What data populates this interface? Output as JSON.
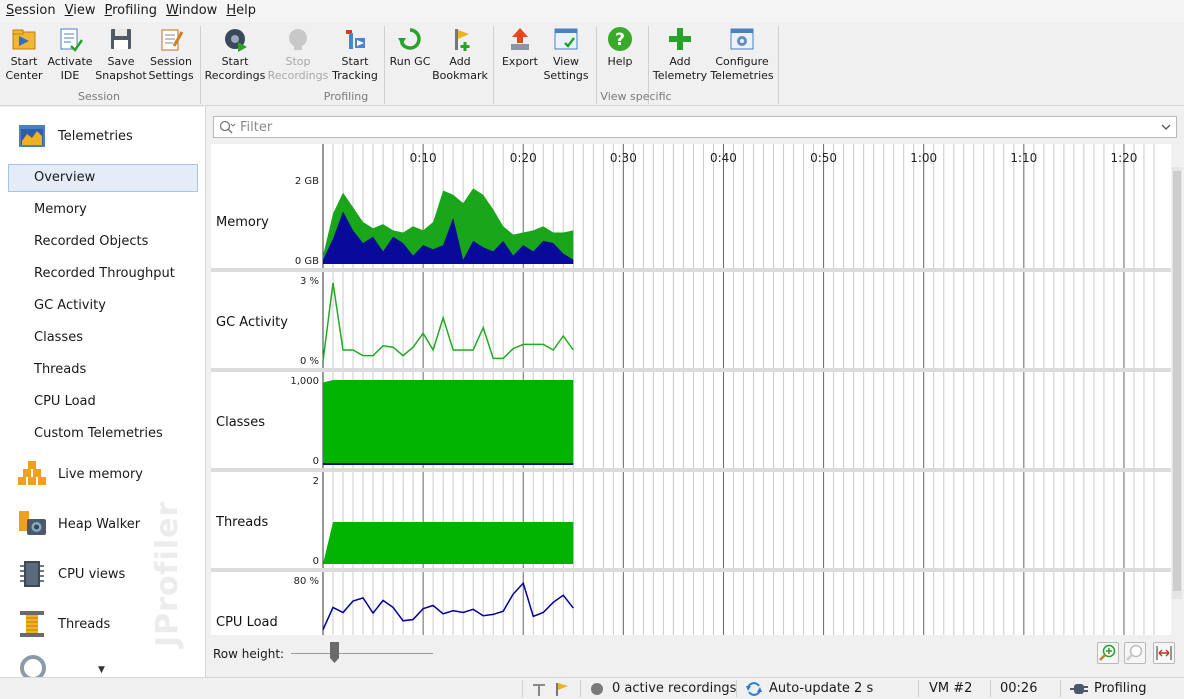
{
  "menu": [
    {
      "key": "S",
      "rest": "ession"
    },
    {
      "key": "V",
      "rest": "iew"
    },
    {
      "key": "P",
      "rest": "rofiling"
    },
    {
      "key": "W",
      "rest": "indow"
    },
    {
      "key": "H",
      "rest": "elp"
    }
  ],
  "toolbar": {
    "buttons": [
      {
        "label": "Start\nCenter",
        "icon": "start-center-icon",
        "enabled": true
      },
      {
        "label": "Activate\nIDE",
        "icon": "activate-ide-icon",
        "enabled": true
      },
      {
        "label": "Save\nSnapshot",
        "icon": "save-snapshot-icon",
        "enabled": true
      },
      {
        "label": "Session\nSettings",
        "icon": "session-settings-icon",
        "enabled": true
      },
      {
        "label": "Start\nRecordings",
        "icon": "start-recordings-icon",
        "enabled": true
      },
      {
        "label": "Stop\nRecordings",
        "icon": "stop-recordings-icon",
        "enabled": false
      },
      {
        "label": "Start\nTracking",
        "icon": "start-tracking-icon",
        "enabled": true
      },
      {
        "label": "Run GC",
        "icon": "run-gc-icon",
        "enabled": true
      },
      {
        "label": "Add\nBookmark",
        "icon": "add-bookmark-icon",
        "enabled": true
      },
      {
        "label": "Export",
        "icon": "export-icon",
        "enabled": true
      },
      {
        "label": "View\nSettings",
        "icon": "view-settings-icon",
        "enabled": true
      },
      {
        "label": "Help",
        "icon": "help-icon",
        "enabled": true
      },
      {
        "label": "Add\nTelemetry",
        "icon": "add-telemetry-icon",
        "enabled": true
      },
      {
        "label": "Configure\nTelemetries",
        "icon": "configure-telemetries-icon",
        "enabled": true
      }
    ],
    "groups": [
      "Session",
      "Profiling",
      "View specific"
    ]
  },
  "sidebar": {
    "sections": [
      {
        "label": "Telemetries",
        "icon": "telemetries-icon"
      },
      {
        "label": "Live memory",
        "icon": "live-memory-icon"
      },
      {
        "label": "Heap Walker",
        "icon": "heap-walker-icon"
      },
      {
        "label": "CPU views",
        "icon": "cpu-views-icon"
      },
      {
        "label": "Threads",
        "icon": "threads-icon"
      }
    ],
    "telemetry_items": [
      "Overview",
      "Memory",
      "Recorded Objects",
      "Recorded Throughput",
      "GC Activity",
      "Classes",
      "Threads",
      "CPU Load",
      "Custom Telemetries"
    ],
    "selected": "Overview",
    "brand": "JProfiler"
  },
  "filter": {
    "placeholder": "Filter"
  },
  "timeline": {
    "ticks": [
      "0:10",
      "0:20",
      "0:30",
      "0:40",
      "0:50",
      "1:00",
      "1:10",
      "1:20"
    ],
    "tick_seconds": [
      10,
      20,
      30,
      40,
      50,
      60,
      70,
      80
    ],
    "x_range_seconds": [
      0,
      84
    ],
    "data_end_seconds": 25
  },
  "colors": {
    "green": "#1aa61a",
    "bright_green": "#00b300",
    "navy": "#0a0a9a",
    "line_green": "#22aa22",
    "line_navy": "#000099"
  },
  "chart_data": [
    {
      "type": "area",
      "title": "Memory",
      "ylabel_top": "2 GB",
      "ylabel_bottom": "0 GB",
      "ylim": [
        0,
        2
      ],
      "x": [
        0,
        1,
        2,
        3,
        4,
        5,
        6,
        7,
        8,
        9,
        10,
        11,
        12,
        13,
        14,
        15,
        16,
        17,
        18,
        19,
        20,
        21,
        22,
        23,
        24,
        25
      ],
      "series": [
        {
          "name": "",
          "values": [
            0.2,
            1.2,
            1.7,
            1.35,
            1.0,
            0.85,
            0.95,
            0.8,
            0.75,
            0.9,
            0.8,
            1.0,
            1.75,
            1.65,
            1.45,
            1.8,
            1.65,
            1.3,
            0.9,
            0.7,
            0.75,
            0.8,
            0.9,
            0.75,
            0.75,
            0.8
          ]
        },
        {
          "name": "",
          "values": [
            0.1,
            0.6,
            1.25,
            0.8,
            0.5,
            0.65,
            0.3,
            0.65,
            0.5,
            0.2,
            0.45,
            0.35,
            0.45,
            1.1,
            0.1,
            0.55,
            0.4,
            0.3,
            0.55,
            0.2,
            0.45,
            0.3,
            0.55,
            0.5,
            0.25,
            0.1
          ]
        }
      ]
    },
    {
      "type": "line",
      "title": "GC Activity",
      "ylabel_top": "3 %",
      "ylabel_bottom": "0 %",
      "ylim": [
        0,
        3
      ],
      "x": [
        0,
        1,
        2,
        3,
        4,
        5,
        6,
        7,
        8,
        9,
        10,
        11,
        12,
        13,
        14,
        15,
        16,
        17,
        18,
        19,
        20,
        21,
        22,
        23,
        24,
        25
      ],
      "series": [
        {
          "name": "",
          "values": [
            0.1,
            2.9,
            0.5,
            0.5,
            0.3,
            0.3,
            0.65,
            0.6,
            0.3,
            0.6,
            1.1,
            0.5,
            1.65,
            0.5,
            0.5,
            0.5,
            1.3,
            0.2,
            0.2,
            0.55,
            0.7,
            0.7,
            0.7,
            0.5,
            1.0,
            0.5
          ]
        }
      ]
    },
    {
      "type": "area",
      "title": "Classes",
      "ylabel_top": "1,000",
      "ylabel_bottom": "0",
      "ylim": [
        0,
        1000
      ],
      "x": [
        0,
        1,
        25
      ],
      "series": [
        {
          "name": "",
          "values": [
            970,
            1000,
            1000
          ]
        }
      ]
    },
    {
      "type": "area",
      "title": "Threads",
      "ylabel_top": "2",
      "ylabel_bottom": "0",
      "ylim": [
        0,
        2
      ],
      "x": [
        0,
        1,
        25
      ],
      "series": [
        {
          "name": "",
          "values": [
            0,
            1,
            1
          ]
        }
      ]
    },
    {
      "type": "line",
      "title": "CPU Load",
      "ylabel_top": "80 %",
      "ylim": [
        0,
        80
      ],
      "x": [
        0,
        1,
        2,
        3,
        4,
        5,
        6,
        7,
        8,
        9,
        10,
        11,
        12,
        13,
        14,
        15,
        16,
        17,
        18,
        19,
        20,
        21,
        22,
        23,
        24,
        25
      ],
      "series": [
        {
          "name": "",
          "values": [
            2,
            37,
            29,
            47,
            52,
            28,
            48,
            37,
            16,
            18,
            35,
            40,
            27,
            32,
            29,
            34,
            24,
            26,
            31,
            58,
            75,
            23,
            29,
            45,
            56,
            36
          ]
        }
      ]
    }
  ],
  "row_height_label": "Row height:",
  "status": {
    "recordings": "0 active recordings",
    "autoupdate": "Auto-update 2 s",
    "vm": "VM #2",
    "time": "00:26",
    "mode": "Profiling"
  }
}
